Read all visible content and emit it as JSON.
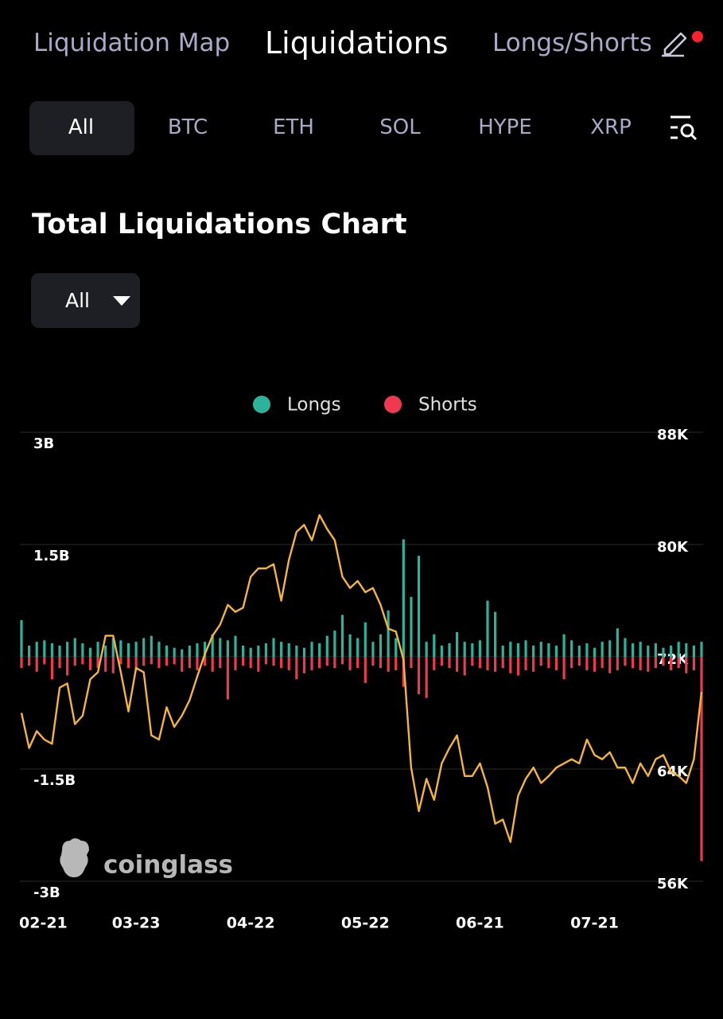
{
  "nav": {
    "tabs": [
      "Liquidation Map",
      "Liquidations",
      "Longs/Shorts"
    ]
  },
  "coin_tabs": [
    "All",
    "BTC",
    "ETH",
    "SOL",
    "HYPE",
    "XRP"
  ],
  "section_title": "Total Liquidations Chart",
  "dropdown": "All",
  "watermark": "coinglass",
  "chart_data": {
    "type": "bar",
    "categories": [
      "02-21",
      null,
      null,
      null,
      null,
      null,
      null,
      null,
      null,
      null,
      null,
      null,
      null,
      null,
      null,
      "03-23",
      null,
      null,
      null,
      null,
      null,
      null,
      null,
      null,
      null,
      null,
      null,
      null,
      null,
      null,
      "04-22",
      null,
      null,
      null,
      null,
      null,
      null,
      null,
      null,
      null,
      null,
      null,
      null,
      null,
      null,
      "05-22",
      null,
      null,
      null,
      null,
      null,
      null,
      null,
      null,
      null,
      null,
      null,
      null,
      null,
      null,
      "06-21",
      null,
      null,
      null,
      null,
      null,
      null,
      null,
      null,
      null,
      null,
      null,
      null,
      null,
      null,
      "07-21",
      null,
      null,
      null,
      null,
      null,
      null,
      null,
      null,
      null,
      null,
      null,
      null,
      null,
      null
    ],
    "series": [
      {
        "name": "Longs",
        "color": "#2bb39b",
        "values": [
          490000000,
          150000000,
          200000000,
          220000000,
          180000000,
          150000000,
          200000000,
          250000000,
          180000000,
          120000000,
          200000000,
          150000000,
          250000000,
          220000000,
          180000000,
          200000000,
          250000000,
          280000000,
          200000000,
          150000000,
          120000000,
          100000000,
          150000000,
          180000000,
          200000000,
          300000000,
          250000000,
          220000000,
          280000000,
          150000000,
          120000000,
          150000000,
          180000000,
          250000000,
          200000000,
          180000000,
          150000000,
          120000000,
          200000000,
          180000000,
          280000000,
          350000000,
          560000000,
          300000000,
          250000000,
          460000000,
          200000000,
          300000000,
          620000000,
          250000000,
          1570000000,
          800000000,
          1350000000,
          200000000,
          300000000,
          150000000,
          180000000,
          330000000,
          200000000,
          180000000,
          220000000,
          750000000,
          600000000,
          150000000,
          200000000,
          180000000,
          220000000,
          150000000,
          200000000,
          180000000,
          150000000,
          300000000,
          220000000,
          150000000,
          180000000,
          120000000,
          200000000,
          220000000,
          380000000,
          250000000,
          180000000,
          200000000,
          150000000,
          180000000,
          120000000,
          150000000,
          200000000,
          180000000,
          150000000,
          200000000
        ]
      },
      {
        "name": "Shorts",
        "color": "#f0394f",
        "values": [
          -150000000,
          -120000000,
          -200000000,
          -100000000,
          -300000000,
          -150000000,
          -250000000,
          -120000000,
          -100000000,
          -180000000,
          -150000000,
          -200000000,
          -220000000,
          -100000000,
          -150000000,
          -180000000,
          -120000000,
          -100000000,
          -150000000,
          -120000000,
          -100000000,
          -200000000,
          -150000000,
          -180000000,
          -120000000,
          -200000000,
          -150000000,
          -570000000,
          -180000000,
          -120000000,
          -150000000,
          -200000000,
          -100000000,
          -120000000,
          -150000000,
          -180000000,
          -300000000,
          -220000000,
          -180000000,
          -150000000,
          -120000000,
          -150000000,
          -100000000,
          -180000000,
          -150000000,
          -350000000,
          -120000000,
          -150000000,
          -200000000,
          -180000000,
          -400000000,
          -150000000,
          -500000000,
          -550000000,
          -180000000,
          -120000000,
          -150000000,
          -200000000,
          -250000000,
          -120000000,
          -150000000,
          -180000000,
          -200000000,
          -150000000,
          -220000000,
          -250000000,
          -180000000,
          -200000000,
          -120000000,
          -150000000,
          -180000000,
          -300000000,
          -150000000,
          -120000000,
          -180000000,
          -200000000,
          -150000000,
          -220000000,
          -180000000,
          -120000000,
          -150000000,
          -180000000,
          -200000000,
          -150000000,
          -120000000,
          -180000000,
          -150000000,
          -220000000,
          -180000000,
          -2730000000
        ]
      },
      {
        "type": "line",
        "axis": "y2",
        "color": "#f5b43a",
        "values": [
          68000,
          65500,
          66700,
          66100,
          65800,
          69800,
          70100,
          67200,
          67800,
          70400,
          70900,
          73500,
          73500,
          70900,
          68100,
          71200,
          70900,
          66400,
          66100,
          68400,
          67000,
          67800,
          68900,
          70600,
          72200,
          73500,
          74300,
          75700,
          75200,
          75500,
          77700,
          78300,
          78300,
          78600,
          76000,
          78900,
          80900,
          81400,
          80300,
          82100,
          81100,
          80300,
          77700,
          76900,
          77400,
          76600,
          76900,
          75700,
          74000,
          73800,
          71800,
          64100,
          61000,
          63300,
          61800,
          64400,
          65500,
          66400,
          63500,
          63500,
          64400,
          62700,
          60100,
          60400,
          58800,
          62100,
          63300,
          64100,
          63000,
          63500,
          64100,
          64400,
          64700,
          64400,
          66100,
          65000,
          64700,
          65200,
          64100,
          64100,
          63000,
          64400,
          63500,
          64700,
          65000,
          63800,
          63500,
          63000,
          64700,
          69500
        ]
      }
    ],
    "ylim": [
      -3000000000,
      3000000000
    ],
    "yticks": [
      {
        "value": 3000000000,
        "label": "3B"
      },
      {
        "value": 1500000000,
        "label": "1.5B"
      },
      {
        "value": -1500000000,
        "label": "-1.5B"
      },
      {
        "value": -3000000000,
        "label": "-3B"
      }
    ],
    "y2lim": [
      56000,
      88000
    ],
    "y2ticks": [
      {
        "value": 88000,
        "label": "88K"
      },
      {
        "value": 80000,
        "label": "80K"
      },
      {
        "value": 72000,
        "label": "72K"
      },
      {
        "value": 64000,
        "label": "64K"
      },
      {
        "value": 56000,
        "label": "56K"
      }
    ],
    "grid": true,
    "legend": "top"
  }
}
